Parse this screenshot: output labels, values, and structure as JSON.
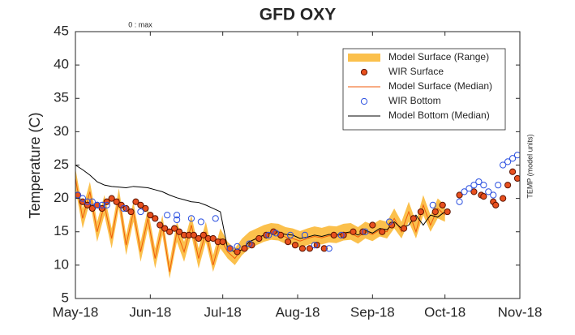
{
  "chart_data": {
    "type": "scatter",
    "title": "GFD OXY",
    "y_label": "Temperature (C)",
    "annotations": [
      "0 : max",
      "TEMP (model units)"
    ],
    "xlim": [
      0,
      184
    ],
    "xticks": [
      {
        "value": 0,
        "label": "May-18"
      },
      {
        "value": 31,
        "label": "Jun-18"
      },
      {
        "value": 61,
        "label": "Jul-18"
      },
      {
        "value": 92,
        "label": "Aug-18"
      },
      {
        "value": 123,
        "label": "Sep-18"
      },
      {
        "value": 153,
        "label": "Oct-18"
      },
      {
        "value": 184,
        "label": "Nov-18"
      }
    ],
    "ylim": [
      5,
      45
    ],
    "yticks": [
      5,
      10,
      15,
      20,
      25,
      30,
      35,
      40,
      45
    ],
    "legend": "upper right",
    "series": [
      {
        "name": "Model Surface (Range)",
        "style": "range",
        "color": "#fbc04c",
        "x": [
          0,
          3,
          6,
          9,
          12,
          15,
          18,
          21,
          24,
          27,
          30,
          33,
          36,
          39,
          42,
          45,
          48,
          51,
          54,
          57,
          60,
          63,
          66,
          69,
          72,
          75,
          78,
          81,
          84,
          87,
          90,
          93,
          96,
          99,
          102,
          105,
          108,
          111,
          114,
          117,
          120,
          123,
          126,
          129,
          132,
          135,
          138,
          141,
          144,
          147,
          150,
          153
        ],
        "low": [
          21.5,
          15.5,
          19.5,
          13.5,
          17.5,
          12.5,
          18.5,
          11.5,
          16.5,
          10.5,
          15.5,
          9.5,
          14.5,
          8,
          13.5,
          10.5,
          14.5,
          9.5,
          13.5,
          9,
          12.5,
          11,
          10,
          11.5,
          12.5,
          13,
          13.5,
          13.8,
          13.7,
          13.2,
          13,
          12.6,
          13,
          13.3,
          13.1,
          13.4,
          13.3,
          13.7,
          13.8,
          13.2,
          14,
          13.6,
          14.3,
          14,
          15.5,
          14,
          16.5,
          14,
          17.5,
          15,
          17,
          16.5
        ],
        "high": [
          24.5,
          18.5,
          22.5,
          16.5,
          20.5,
          15.5,
          21.5,
          14.5,
          19.5,
          13.5,
          18.5,
          12.5,
          17.5,
          10.5,
          16.5,
          13.5,
          17.5,
          12.5,
          16.5,
          11.5,
          15.5,
          13.5,
          12.5,
          14,
          15,
          15.5,
          16,
          16.3,
          16.2,
          15.7,
          15.5,
          15.1,
          15.5,
          15.8,
          15.6,
          15.9,
          15.8,
          16.2,
          16.3,
          15.7,
          16.5,
          16.1,
          16.8,
          16.5,
          18.5,
          16.5,
          19.5,
          16.5,
          20.5,
          17.5,
          20,
          19
        ]
      },
      {
        "name": "WIR Surface",
        "style": "marker",
        "fill": true,
        "color": "#e8501e",
        "edgecolor": "#5a1200",
        "x": [
          1,
          3,
          5,
          7,
          9,
          11,
          13,
          15,
          17,
          19,
          21,
          23,
          25,
          27,
          29,
          31,
          33,
          35,
          37,
          39,
          41,
          43,
          45,
          47,
          49,
          51,
          53,
          55,
          57,
          59,
          61,
          64,
          67,
          70,
          73,
          76,
          79,
          82,
          85,
          88,
          91,
          94,
          97,
          100,
          103,
          107,
          111,
          115,
          119,
          123,
          127,
          131,
          136,
          140,
          143,
          149,
          152,
          154,
          159,
          165,
          168,
          169,
          173,
          174,
          177,
          179,
          181,
          183
        ],
        "values": [
          20.5,
          19.5,
          19,
          18.5,
          19,
          18.5,
          19.5,
          20,
          19.5,
          19,
          18.5,
          18,
          19.5,
          19,
          18.5,
          17.5,
          17,
          16,
          15.5,
          15,
          15.5,
          15,
          14.5,
          14.5,
          14.5,
          14,
          14.5,
          14,
          14,
          13.5,
          13.5,
          12.5,
          12,
          12.5,
          13,
          14,
          14.5,
          15,
          14.5,
          13.5,
          13,
          12.5,
          12.5,
          13,
          12.5,
          14.5,
          14.5,
          15,
          15,
          16,
          15,
          16,
          15.5,
          17,
          18,
          18,
          19,
          18,
          20.5,
          21,
          20.5,
          20.3,
          19.5,
          19,
          20,
          22,
          24,
          23
        ]
      },
      {
        "name": "Model Surface (Median)",
        "style": "line",
        "color": "#f05a0a",
        "x": [
          0,
          3,
          6,
          9,
          12,
          15,
          18,
          21,
          24,
          27,
          30,
          33,
          36,
          39,
          42,
          45,
          48,
          51,
          54,
          57,
          60,
          63,
          66,
          69,
          72,
          75,
          78,
          81,
          84,
          87,
          90,
          93,
          96,
          99,
          102,
          105,
          108,
          111,
          114,
          117,
          120,
          123,
          126,
          129,
          132,
          135,
          138,
          141,
          144,
          147,
          150,
          153
        ],
        "values": [
          23,
          17,
          21,
          15,
          19,
          14,
          20,
          13,
          18,
          12,
          17,
          11,
          16,
          9,
          15,
          12,
          16,
          11,
          15,
          10,
          14,
          12,
          11,
          12.5,
          13.5,
          14,
          14.5,
          14.8,
          14.7,
          14.2,
          14,
          13.6,
          14,
          14.3,
          14.1,
          14.4,
          14.3,
          14.7,
          14.8,
          14.2,
          15,
          14.6,
          15.3,
          15,
          17,
          15,
          18,
          15,
          19,
          16,
          18.5,
          17.5
        ]
      },
      {
        "name": "WIR Bottom",
        "style": "marker",
        "fill": false,
        "color": "#2a4fe0",
        "x": [
          1,
          3,
          5,
          7,
          9,
          11,
          13,
          20,
          27,
          38,
          42,
          42,
          48,
          52,
          58,
          64,
          67,
          72,
          80,
          83,
          89,
          95,
          99,
          105,
          110,
          120,
          130,
          148,
          159,
          161,
          163,
          165,
          167,
          169,
          171,
          173,
          175,
          177,
          179,
          181,
          183
        ],
        "values": [
          20.5,
          20,
          19.5,
          19.5,
          19,
          19,
          19,
          18.5,
          18,
          17.5,
          17.5,
          16.8,
          17,
          16.5,
          17,
          12.5,
          12.8,
          13.2,
          14.5,
          14.8,
          14.5,
          14.5,
          13,
          12.5,
          14.5,
          15,
          16.5,
          19,
          19.5,
          21,
          21.5,
          22,
          22.5,
          22,
          21,
          20.5,
          22,
          25,
          25.5,
          26,
          26.5
        ]
      },
      {
        "name": "Model Bottom (Median)",
        "style": "line",
        "color": "#000000",
        "x": [
          0,
          3,
          6,
          9,
          12,
          15,
          18,
          21,
          24,
          27,
          30,
          33,
          36,
          39,
          42,
          45,
          48,
          51,
          54,
          57,
          60,
          63,
          66,
          69,
          72,
          75,
          78,
          81,
          84,
          87,
          90,
          93,
          96,
          99,
          102,
          105,
          108,
          111,
          114,
          117,
          120,
          123,
          126,
          129,
          132,
          135,
          138,
          141,
          144,
          147,
          150,
          153
        ],
        "values": [
          25,
          24.3,
          23.5,
          22.5,
          22,
          21.8,
          21.7,
          21.6,
          21.8,
          21.7,
          21.6,
          21.3,
          21,
          20.5,
          20.1,
          19.8,
          19.5,
          19.4,
          19,
          18.5,
          18,
          12.5,
          12,
          12.3,
          13.5,
          14,
          14.5,
          14.8,
          15,
          14.6,
          14.5,
          14,
          14.2,
          14.5,
          14.3,
          14.6,
          14.5,
          14.8,
          15,
          14.5,
          15.2,
          14.8,
          15.5,
          15.3,
          16.5,
          15.5,
          16,
          17.5,
          16,
          17.5,
          17.2,
          18
        ]
      }
    ]
  }
}
